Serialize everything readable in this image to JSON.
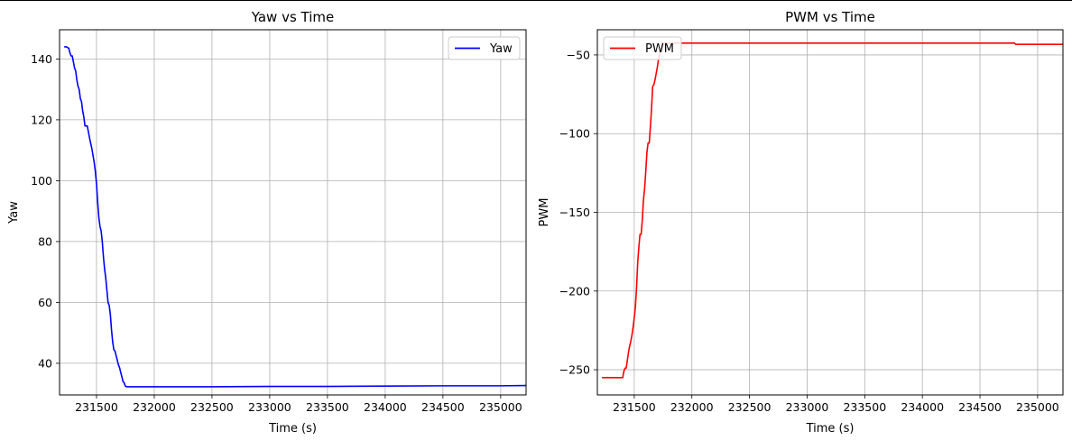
{
  "chart_data": [
    {
      "type": "line",
      "title": "Yaw vs Time",
      "xlabel": "Time (s)",
      "ylabel": "Yaw",
      "xlim": [
        231180,
        235220
      ],
      "ylim": [
        29.6,
        149.6
      ],
      "xticks": [
        231500,
        232000,
        232500,
        233000,
        233500,
        234000,
        234500,
        235000
      ],
      "yticks": [
        40,
        60,
        80,
        100,
        120,
        140
      ],
      "grid": true,
      "legend_position": "top-right",
      "series": [
        {
          "name": "Yaw",
          "color": "#0000ff",
          "x": [
            231220,
            231240,
            231260,
            231270,
            231280,
            231290,
            231300,
            231310,
            231320,
            231330,
            231340,
            231350,
            231360,
            231370,
            231380,
            231390,
            231400,
            231420,
            231440,
            231460,
            231480,
            231490,
            231500,
            231510,
            231520,
            231530,
            231540,
            231550,
            231560,
            231570,
            231580,
            231590,
            231600,
            231610,
            231620,
            231630,
            231640,
            231650,
            231660,
            231670,
            231680,
            231690,
            231700,
            231710,
            231720,
            231730,
            231740,
            231750,
            231760,
            231770,
            231780,
            231790,
            231800,
            231810,
            231820,
            231830,
            231850,
            231900,
            232000,
            232500,
            233000,
            233500,
            234000,
            234500,
            234800,
            235000,
            235220
          ],
          "y": [
            144,
            144,
            143.5,
            142,
            141,
            141,
            139,
            137,
            136,
            133,
            131,
            130,
            127,
            126,
            123,
            121,
            118,
            118,
            114,
            110.5,
            106,
            103,
            99,
            93,
            88,
            85,
            83.5,
            80,
            75,
            71,
            68,
            64,
            60,
            59,
            56,
            51,
            47,
            44.5,
            44,
            42.5,
            41,
            39.5,
            38.5,
            37,
            35.5,
            34,
            33.5,
            32.5,
            32.3,
            32.3,
            32.3,
            32.3,
            32.3,
            32.3,
            32.3,
            32.3,
            32.3,
            32.3,
            32.3,
            32.3,
            32.4,
            32.4,
            32.5,
            32.6,
            32.6,
            32.6,
            32.7
          ]
        }
      ]
    },
    {
      "type": "line",
      "title": "PWM vs Time",
      "xlabel": "Time (s)",
      "ylabel": "PWM",
      "xlim": [
        231180,
        235220
      ],
      "ylim": [
        -266,
        -34
      ],
      "xticks": [
        231500,
        232000,
        232500,
        233000,
        233500,
        234000,
        234500,
        235000
      ],
      "yticks": [
        -250,
        -200,
        -150,
        -100,
        -50
      ],
      "grid": true,
      "legend_position": "top-left",
      "series": [
        {
          "name": "PWM",
          "color": "#ff0000",
          "x": [
            231220,
            231400,
            231410,
            231420,
            231430,
            231440,
            231450,
            231460,
            231470,
            231480,
            231490,
            231500,
            231510,
            231520,
            231530,
            231540,
            231550,
            231560,
            231570,
            231580,
            231590,
            231600,
            231610,
            231620,
            231630,
            231640,
            231650,
            231660,
            231670,
            231680,
            231690,
            231700,
            231710,
            231720,
            231730,
            231740,
            231750,
            231760,
            231770,
            231780,
            231790,
            231800,
            231810,
            231820,
            231830,
            231850,
            232000,
            233000,
            234000,
            234800,
            234810,
            235000,
            235220
          ],
          "y": [
            -255,
            -255,
            -251,
            -249,
            -249,
            -244,
            -239,
            -235,
            -232,
            -228,
            -223,
            -217,
            -210,
            -198,
            -182,
            -172,
            -164,
            -164,
            -155,
            -142,
            -135,
            -124,
            -112,
            -106,
            -106,
            -96,
            -84,
            -70,
            -69,
            -66,
            -62,
            -58,
            -53,
            -50,
            -46,
            -42.5,
            -42.5,
            -42.5,
            -42.5,
            -42.5,
            -42.5,
            -42.5,
            -42.5,
            -42.5,
            -42.5,
            -42.5,
            -42.5,
            -42.5,
            -42.5,
            -42.5,
            -43.3,
            -43.3,
            -43.3
          ]
        }
      ]
    }
  ]
}
